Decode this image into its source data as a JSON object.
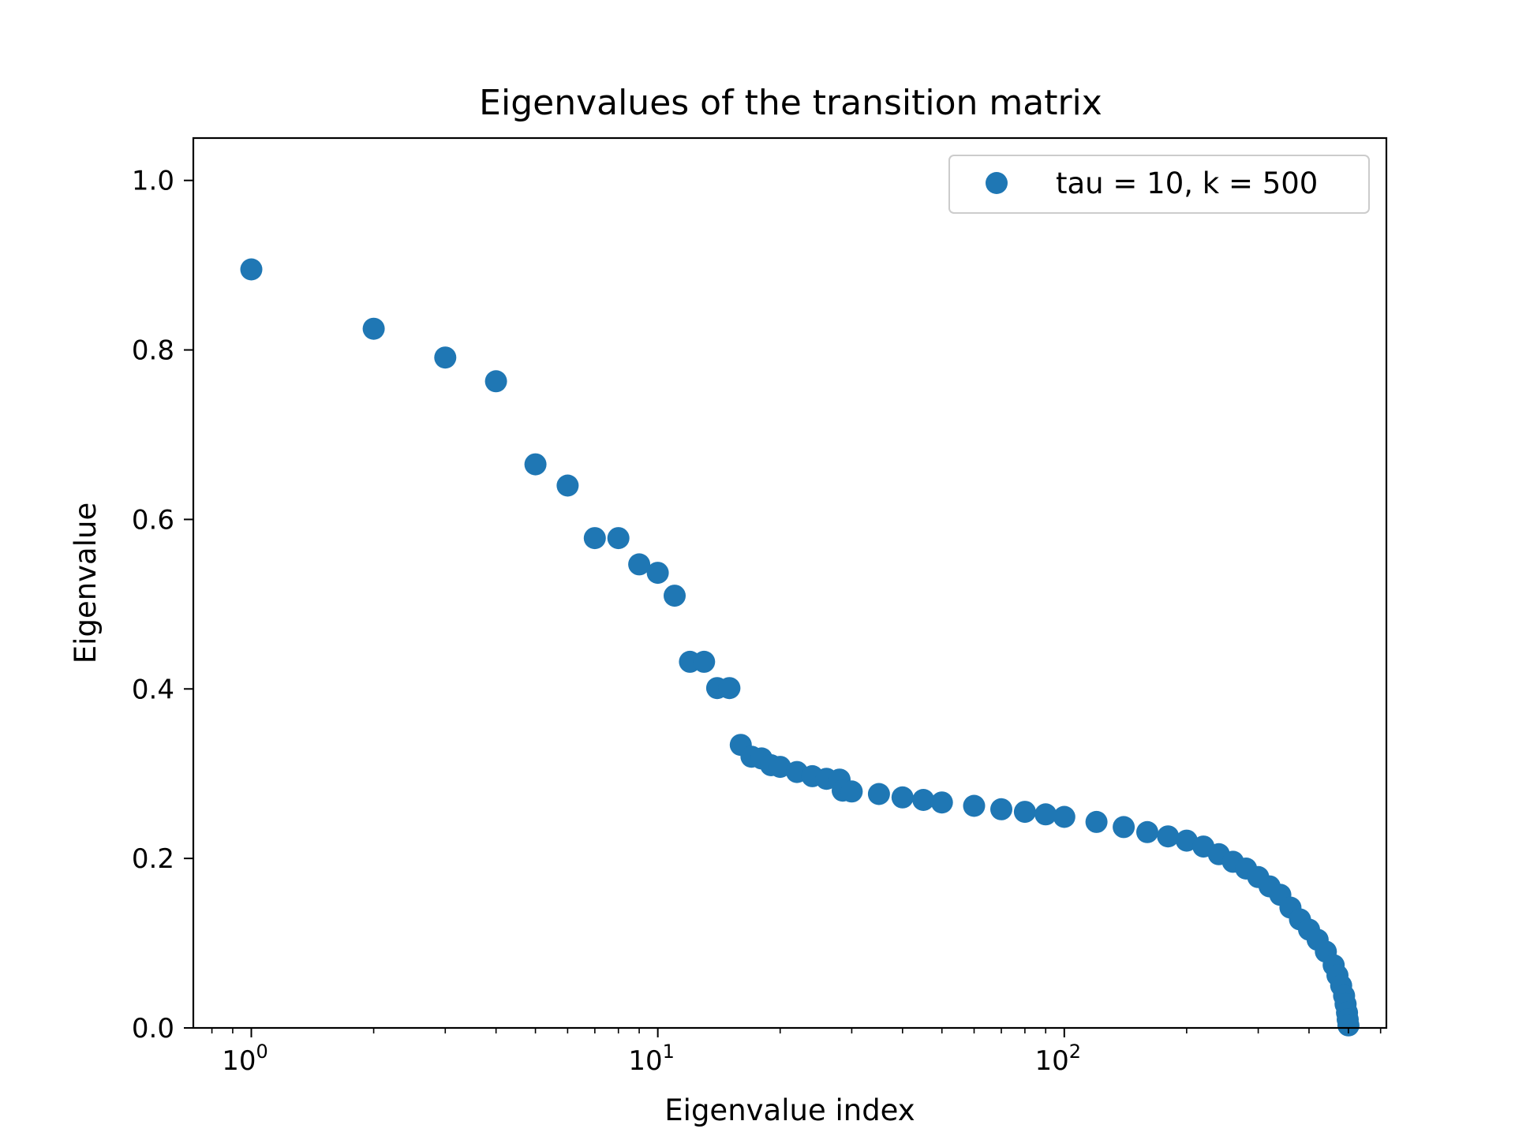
{
  "chart_data": {
    "type": "scatter",
    "title": "Eigenvalues of the transition matrix",
    "xlabel": "Eigenvalue index",
    "ylabel": "Eigenvalue",
    "xscale": "log",
    "xlim": [
      0.72,
      620
    ],
    "ylim": [
      0.0,
      1.05
    ],
    "grid": false,
    "legend_position": "top-right",
    "x_ticks": [
      {
        "value": 1,
        "base": "10",
        "exp": "0"
      },
      {
        "value": 10,
        "base": "10",
        "exp": "1"
      },
      {
        "value": 100,
        "base": "10",
        "exp": "2"
      }
    ],
    "y_ticks": [
      "0.0",
      "0.2",
      "0.4",
      "0.6",
      "0.8",
      "1.0"
    ],
    "series": [
      {
        "name": "tau = 10, k = 500",
        "color": "#1f77b4",
        "marker": "circle",
        "points": [
          [
            1,
            0.895
          ],
          [
            2,
            0.825
          ],
          [
            3,
            0.791
          ],
          [
            4,
            0.763
          ],
          [
            5,
            0.665
          ],
          [
            6,
            0.64
          ],
          [
            7,
            0.578
          ],
          [
            8,
            0.578
          ],
          [
            9,
            0.547
          ],
          [
            10,
            0.537
          ],
          [
            11,
            0.51
          ],
          [
            12,
            0.432
          ],
          [
            13,
            0.432
          ],
          [
            14,
            0.401
          ],
          [
            15,
            0.401
          ],
          [
            16,
            0.334
          ],
          [
            17,
            0.32
          ],
          [
            18,
            0.318
          ],
          [
            19,
            0.31
          ],
          [
            20,
            0.308
          ],
          [
            22,
            0.302
          ],
          [
            24,
            0.297
          ],
          [
            26,
            0.294
          ],
          [
            28,
            0.293
          ],
          [
            28.5,
            0.28
          ],
          [
            30,
            0.279
          ],
          [
            35,
            0.276
          ],
          [
            40,
            0.272
          ],
          [
            45,
            0.269
          ],
          [
            50,
            0.266
          ],
          [
            60,
            0.262
          ],
          [
            70,
            0.258
          ],
          [
            80,
            0.255
          ],
          [
            90,
            0.252
          ],
          [
            100,
            0.249
          ],
          [
            120,
            0.243
          ],
          [
            140,
            0.237
          ],
          [
            160,
            0.231
          ],
          [
            180,
            0.226
          ],
          [
            200,
            0.221
          ],
          [
            220,
            0.214
          ],
          [
            240,
            0.205
          ],
          [
            260,
            0.196
          ],
          [
            280,
            0.188
          ],
          [
            300,
            0.178
          ],
          [
            320,
            0.167
          ],
          [
            340,
            0.157
          ],
          [
            360,
            0.142
          ],
          [
            380,
            0.128
          ],
          [
            400,
            0.116
          ],
          [
            420,
            0.104
          ],
          [
            440,
            0.09
          ],
          [
            460,
            0.074
          ],
          [
            470,
            0.062
          ],
          [
            480,
            0.05
          ],
          [
            488,
            0.038
          ],
          [
            492,
            0.028
          ],
          [
            496,
            0.018
          ],
          [
            498,
            0.01
          ],
          [
            500,
            0.003
          ]
        ]
      }
    ]
  }
}
